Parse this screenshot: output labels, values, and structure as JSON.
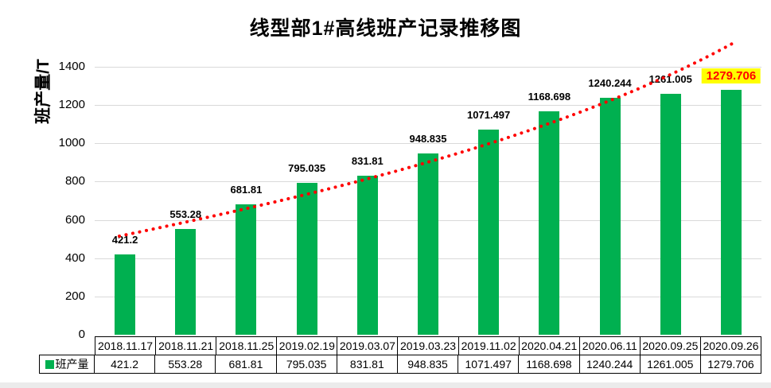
{
  "title": "线型部1#高线班产记录推移图",
  "y_axis": {
    "label": "班产量/T",
    "tick_labels": [
      "0",
      "200",
      "400",
      "600",
      "800",
      "1000",
      "1200",
      "1400"
    ]
  },
  "legend": {
    "label": "班产量"
  },
  "colors": {
    "bar": "#00B050",
    "trendline": "#FF0000",
    "gridline": "#D9D9D9",
    "highlight_bg": "#FFFF00",
    "highlight_text": "#FF0000",
    "label_text": "#000000"
  },
  "chart_data": {
    "type": "bar",
    "title": "线型部1#高线班产记录推移图",
    "xlabel": "",
    "ylabel": "班产量/T",
    "ylim": [
      0,
      1500
    ],
    "y_major_unit": 200,
    "grid": true,
    "legend_position": "bottom-left",
    "categories": [
      "2018.11.17",
      "2018.11.21",
      "2018.11.25",
      "2019.02.19",
      "2019.03.07",
      "2019.03.23",
      "2019.11.02",
      "2020.04.21",
      "2020.06.11",
      "2020.09.25",
      "2020.09.26"
    ],
    "series": [
      {
        "name": "班产量",
        "values": [
          421.2,
          553.28,
          681.81,
          795.035,
          831.81,
          948.835,
          1071.497,
          1168.698,
          1240.244,
          1261.005,
          1279.706
        ]
      }
    ],
    "data_labels": [
      "421.2",
      "553.28",
      "681.81",
      "795.035",
      "831.81",
      "948.835",
      "1071.497",
      "1168.698",
      "1240.244",
      "1261.005",
      "1279.706"
    ],
    "highlight_index": 10,
    "data_table_shown": true,
    "trendline": {
      "series": "班产量",
      "shape": "power",
      "style": "round-dotted",
      "color": "#FF0000"
    }
  }
}
